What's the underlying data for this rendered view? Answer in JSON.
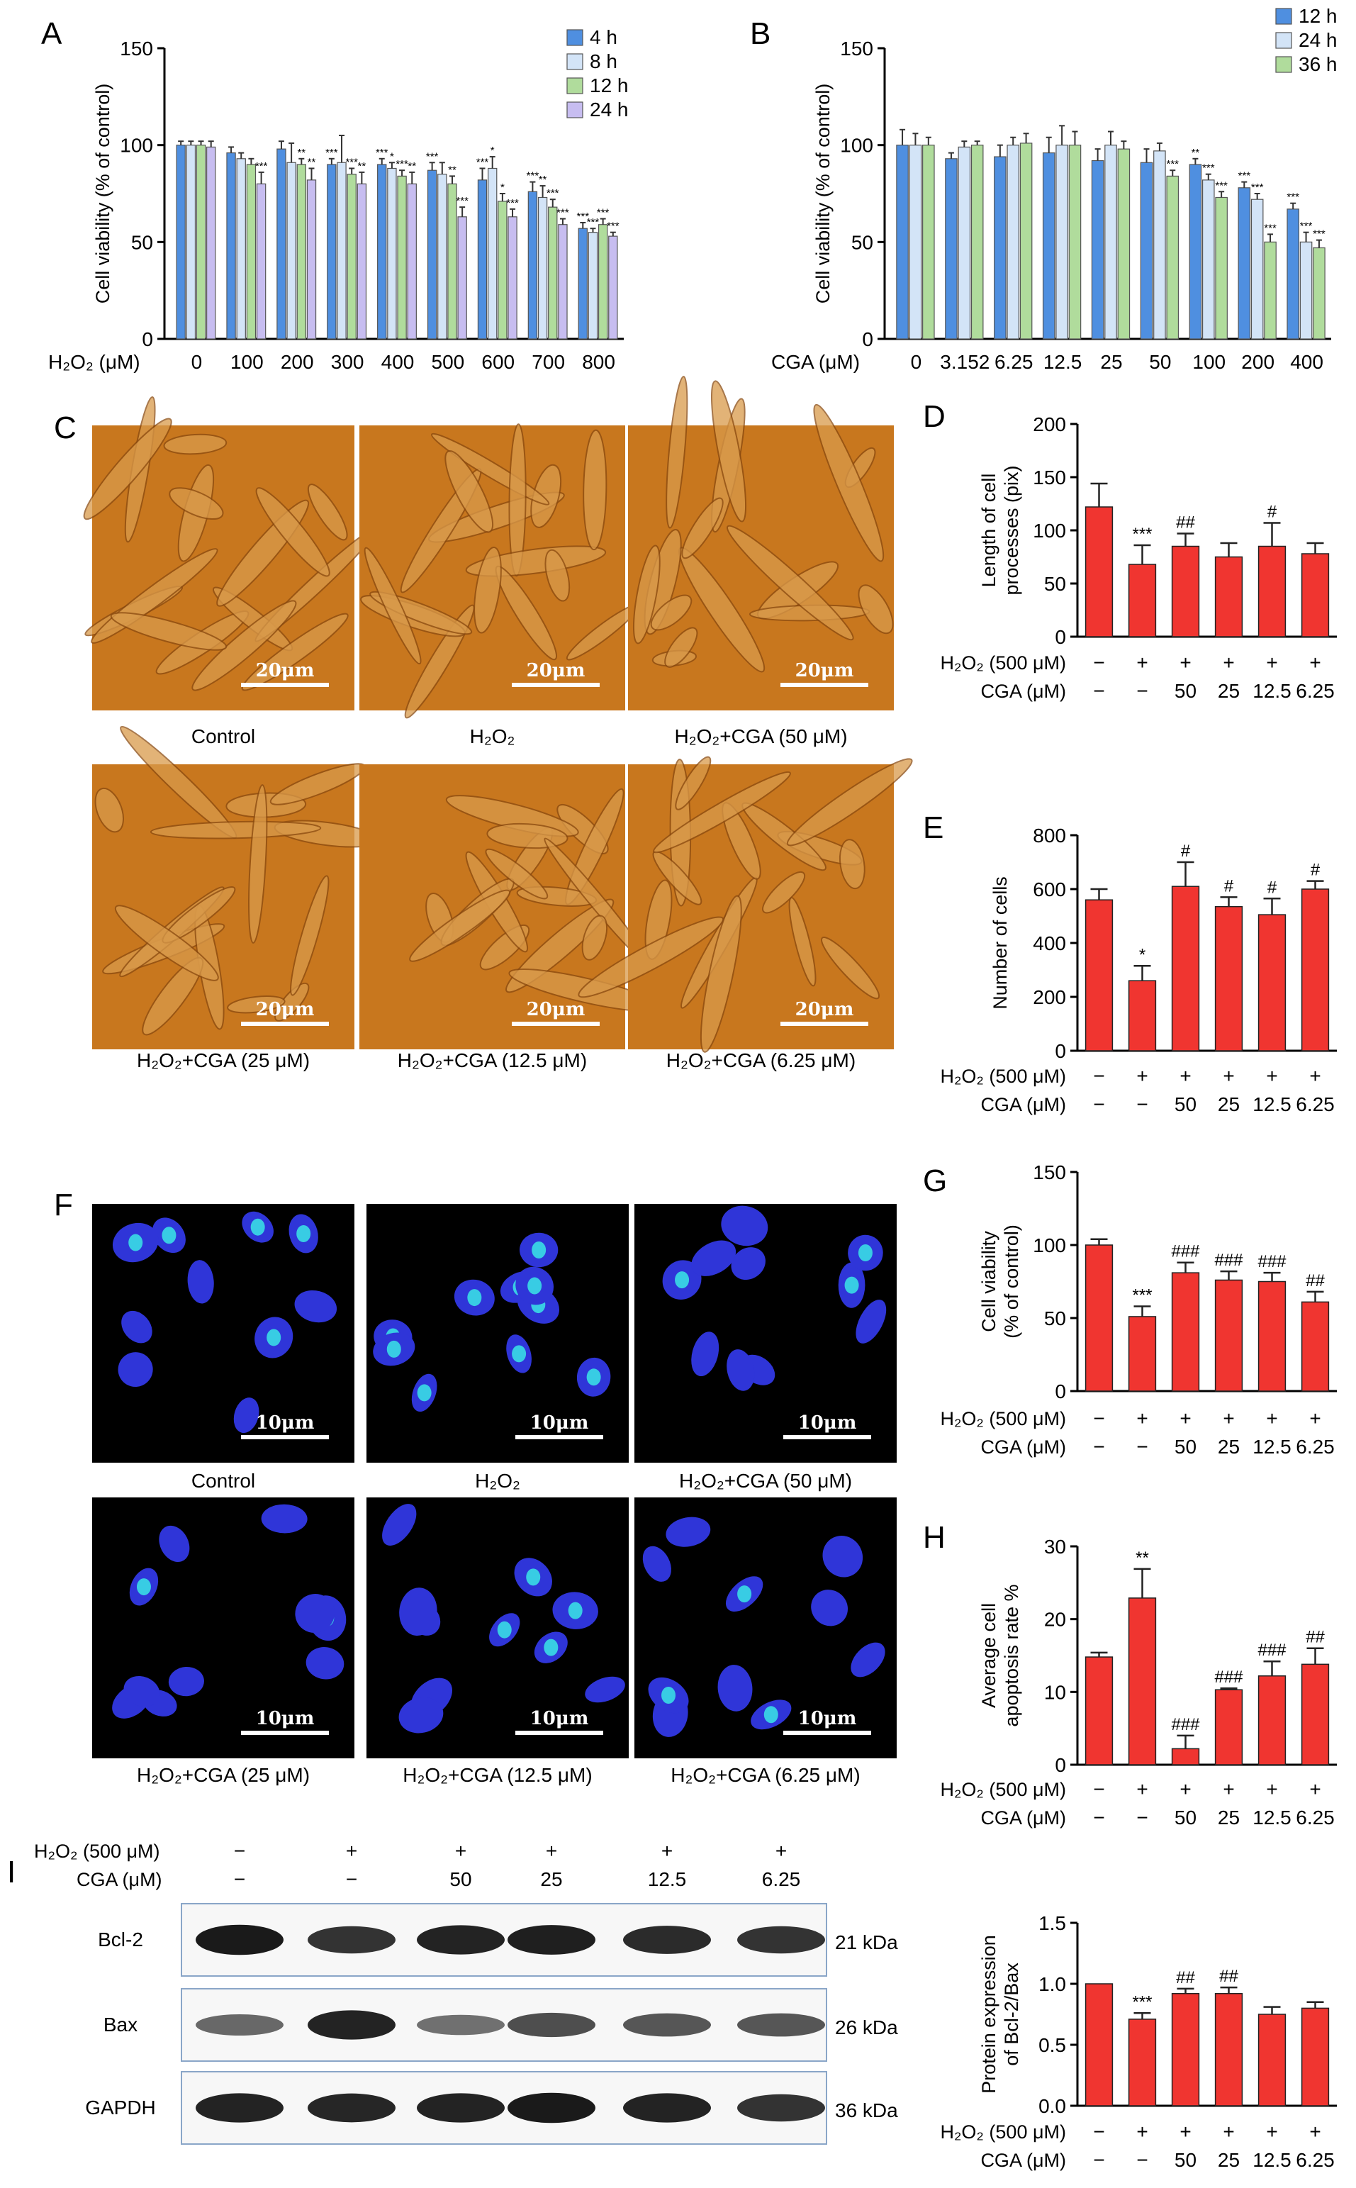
{
  "panel_labels": {
    "A": "A",
    "B": "B",
    "C": "C",
    "D": "D",
    "E": "E",
    "F": "F",
    "G": "G",
    "H": "H",
    "I": "I"
  },
  "colors": {
    "red_bar": "#f03530",
    "a_4h": "#4f8fe0",
    "a_8h": "#d3e4f7",
    "a_12h": "#b0dc9c",
    "a_24h": "#c7bdf0",
    "b_12h": "#4f8fe0",
    "b_24h": "#d3e4f7",
    "b_36h": "#b0dc9c",
    "micro_bg": "#c8771e",
    "fluor_bg": "#000000",
    "nucleus": "#2f35d8",
    "bright_nucleus": "#39e6e6"
  },
  "treatment_rows": {
    "h2o2_label": "H₂O₂ (500 μM)",
    "cga_label": "CGA (μM)",
    "h2o2_marks": [
      "−",
      "+",
      "+",
      "+",
      "+",
      "+"
    ],
    "cga_marks": [
      "−",
      "−",
      "50",
      "25",
      "12.5",
      "6.25"
    ]
  },
  "chart_data": [
    {
      "id": "A",
      "type": "bar",
      "ylabel": "Cell viability (% of control)",
      "xlabel": "H₂O₂ (μM)",
      "categories": [
        "0",
        "100",
        "200",
        "300",
        "400",
        "500",
        "600",
        "700",
        "800"
      ],
      "ylim": [
        0,
        150
      ],
      "yticks": [
        0,
        50,
        100,
        150
      ],
      "legend": "top-right",
      "series": [
        {
          "name": "4 h",
          "color": "#4f8fe0",
          "values": [
            100,
            96,
            98,
            90,
            90,
            87,
            82,
            76,
            57
          ],
          "err": [
            2,
            3,
            4,
            3,
            3,
            4,
            6,
            5,
            3
          ],
          "sig": [
            "",
            "",
            "",
            "***",
            "***",
            "***",
            "***",
            "***",
            "***"
          ]
        },
        {
          "name": "8 h",
          "color": "#d3e4f7",
          "values": [
            100,
            93,
            91,
            91,
            88,
            85,
            88,
            73,
            55
          ],
          "err": [
            2,
            3,
            10,
            14,
            3,
            6,
            6,
            6,
            2
          ],
          "sig": [
            "",
            "",
            "",
            "",
            "*",
            "",
            "*",
            "**",
            "***"
          ]
        },
        {
          "name": "12 h",
          "color": "#b0dc9c",
          "values": [
            100,
            90,
            90,
            85,
            84,
            80,
            71,
            68,
            59
          ],
          "err": [
            2,
            3,
            3,
            3,
            3,
            4,
            4,
            4,
            3
          ],
          "sig": [
            "",
            "",
            "**",
            "***",
            "***",
            "**",
            "*",
            "***",
            "***"
          ]
        },
        {
          "name": "24 h",
          "color": "#c7bdf0",
          "values": [
            99,
            80,
            82,
            80,
            80,
            63,
            63,
            59,
            53
          ],
          "err": [
            3,
            6,
            6,
            6,
            6,
            5,
            4,
            3,
            2
          ],
          "sig": [
            "",
            "***",
            "**",
            "**",
            "**",
            "***",
            "***",
            "***",
            "***"
          ]
        }
      ]
    },
    {
      "id": "B",
      "type": "bar",
      "ylabel": "Cell viability (% of control)",
      "xlabel": "CGA (μM)",
      "categories": [
        "0",
        "3.152",
        "6.25",
        "12.5",
        "25",
        "50",
        "100",
        "200",
        "400"
      ],
      "ylim": [
        0,
        150
      ],
      "yticks": [
        0,
        50,
        100,
        150
      ],
      "legend": "top-right",
      "series": [
        {
          "name": "12 h",
          "color": "#4f8fe0",
          "values": [
            100,
            93,
            94,
            96,
            92,
            91,
            90,
            78,
            67
          ],
          "err": [
            8,
            3,
            6,
            8,
            6,
            7,
            3,
            3,
            3
          ],
          "sig": [
            "",
            "",
            "",
            "",
            "",
            "",
            "**",
            "***",
            "***"
          ]
        },
        {
          "name": "24 h",
          "color": "#d3e4f7",
          "values": [
            100,
            99,
            100,
            100,
            100,
            97,
            82,
            72,
            50
          ],
          "err": [
            6,
            3,
            4,
            10,
            7,
            4,
            3,
            3,
            5
          ],
          "sig": [
            "",
            "",
            "",
            "",
            "",
            "",
            "***",
            "***",
            "***"
          ]
        },
        {
          "name": "36 h",
          "color": "#b0dc9c",
          "values": [
            100,
            100,
            101,
            100,
            98,
            84,
            73,
            50,
            47
          ],
          "err": [
            4,
            2,
            5,
            7,
            4,
            3,
            3,
            4,
            4
          ],
          "sig": [
            "",
            "",
            "",
            "",
            "",
            "***",
            "***",
            "***",
            "***"
          ]
        }
      ]
    },
    {
      "id": "D",
      "type": "bar",
      "ylabel": "Length of cell processes (pix)",
      "ylabel_lines": [
        "Length of cell",
        "processes (pix)"
      ],
      "ylim": [
        0,
        200
      ],
      "yticks": [
        0,
        50,
        100,
        150,
        200
      ],
      "values": [
        122,
        68,
        85,
        75,
        85,
        78
      ],
      "err": [
        22,
        18,
        12,
        13,
        22,
        10
      ],
      "sig": [
        "",
        "***",
        "##",
        "",
        "#",
        ""
      ]
    },
    {
      "id": "E",
      "type": "bar",
      "ylabel": "Number of cells",
      "ylim": [
        0,
        800
      ],
      "yticks": [
        0,
        200,
        400,
        600,
        800
      ],
      "values": [
        560,
        260,
        610,
        535,
        505,
        600
      ],
      "err": [
        40,
        55,
        90,
        35,
        60,
        30
      ],
      "sig": [
        "",
        "*",
        "#",
        "#",
        "#",
        "#"
      ]
    },
    {
      "id": "G",
      "type": "bar",
      "ylabel": "Cell viability (% of control)",
      "ylabel_lines": [
        "Cell viability",
        "(% of control)"
      ],
      "ylim": [
        0,
        150
      ],
      "yticks": [
        0,
        50,
        100,
        150
      ],
      "values": [
        100,
        51,
        81,
        76,
        75,
        61
      ],
      "err": [
        4,
        7,
        7,
        6,
        6,
        7
      ],
      "sig": [
        "",
        "***",
        "###",
        "###",
        "###",
        "##"
      ]
    },
    {
      "id": "H",
      "type": "bar",
      "ylabel": "Average cell apoptosis rate %",
      "ylabel_lines": [
        "Average cell",
        "apoptosis rate %"
      ],
      "ylim": [
        0,
        30
      ],
      "yticks": [
        0,
        10,
        20,
        30
      ],
      "values": [
        14.8,
        22.9,
        2.2,
        10.3,
        12.2,
        13.8
      ],
      "err": [
        0.6,
        4.0,
        1.8,
        0.2,
        2.0,
        2.2
      ],
      "sig": [
        "",
        "**",
        "###",
        "###",
        "###",
        "##"
      ]
    },
    {
      "id": "I-quant",
      "type": "bar",
      "ylabel": "Protein expression of Bcl-2/Bax",
      "ylabel_lines": [
        "Protein expression",
        "of Bcl-2/Bax"
      ],
      "ylim": [
        0,
        1.5
      ],
      "yticks": [
        "0.0",
        "0.5",
        "1.0",
        "1.5"
      ],
      "values": [
        1.0,
        0.71,
        0.92,
        0.92,
        0.75,
        0.8
      ],
      "err": [
        0.0,
        0.05,
        0.04,
        0.05,
        0.06,
        0.05
      ],
      "sig": [
        "",
        "***",
        "##",
        "##",
        "",
        ""
      ]
    }
  ],
  "panel_C": {
    "images": [
      {
        "caption": "Control",
        "scale": "20μm"
      },
      {
        "caption": "H₂O₂",
        "scale": "20μm"
      },
      {
        "caption": "H₂O₂+CGA (50 μM)",
        "scale": "20μm"
      },
      {
        "caption": "H₂O₂+CGA (25 μM)",
        "scale": "20μm"
      },
      {
        "caption": "H₂O₂+CGA (12.5 μM)",
        "scale": "20μm"
      },
      {
        "caption": "H₂O₂+CGA (6.25 μM)",
        "scale": "20μm"
      }
    ]
  },
  "panel_F": {
    "images": [
      {
        "caption": "Control",
        "scale": "10μm"
      },
      {
        "caption": "H₂O₂",
        "scale": "10μm"
      },
      {
        "caption": "H₂O₂+CGA (50 μM)",
        "scale": "10μm"
      },
      {
        "caption": "H₂O₂+CGA (25 μM)",
        "scale": "10μm"
      },
      {
        "caption": "H₂O₂+CGA (12.5 μM)",
        "scale": "10μm"
      },
      {
        "caption": "H₂O₂+CGA (6.25 μM)",
        "scale": "10μm"
      }
    ]
  },
  "panel_I": {
    "h2o2_label": "H₂O₂ (500 μM)",
    "cga_label": "CGA (μM)",
    "h2o2_marks": [
      "−",
      "+",
      "+",
      "+",
      "+",
      "+"
    ],
    "cga_marks": [
      "−",
      "−",
      "50",
      "25",
      "12.5",
      "6.25"
    ],
    "blots": [
      {
        "name": "Bcl-2",
        "size": "21 kDa",
        "intensity": [
          0.95,
          0.8,
          0.9,
          0.92,
          0.85,
          0.8
        ]
      },
      {
        "name": "Bax",
        "size": "26 kDa",
        "intensity": [
          0.5,
          0.9,
          0.45,
          0.65,
          0.6,
          0.6
        ]
      },
      {
        "name": "GAPDH",
        "size": "36 kDa",
        "intensity": [
          0.9,
          0.88,
          0.9,
          0.95,
          0.9,
          0.8
        ]
      }
    ]
  }
}
